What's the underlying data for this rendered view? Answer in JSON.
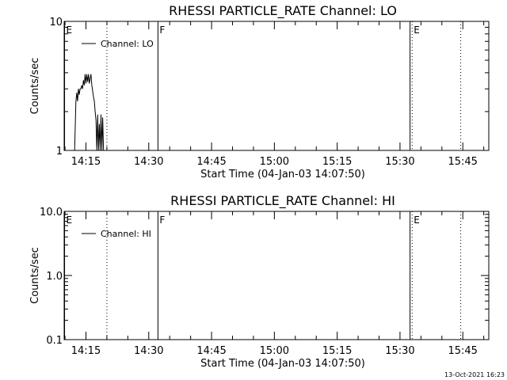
{
  "footer": {
    "timestamp": "13-Oct-2021 16:23"
  },
  "chart_data": [
    {
      "type": "line",
      "title": "RHESSI PARTICLE_RATE Channel: LO",
      "xlabel": "Start Time (04-Jan-03 14:07:50)",
      "ylabel": "Counts/sec",
      "y_scale": "log",
      "ylim": [
        1,
        10
      ],
      "y_ticks": [
        {
          "value": 1,
          "label": "1"
        },
        {
          "value": 10,
          "label": "10"
        }
      ],
      "xlim_minutes": [
        849.8,
        951.2
      ],
      "x_ticks": [
        {
          "value": 855,
          "label": "14:15"
        },
        {
          "value": 870,
          "label": "14:30"
        },
        {
          "value": 885,
          "label": "14:45"
        },
        {
          "value": 900,
          "label": "15:00"
        },
        {
          "value": 915,
          "label": "15:15"
        },
        {
          "value": 930,
          "label": "15:30"
        },
        {
          "value": 945,
          "label": "15:45"
        }
      ],
      "legend": {
        "label": "Channel: LO",
        "position": "top-left"
      },
      "markers": [
        {
          "label": "E",
          "minute": 849.9,
          "style": "solid"
        },
        {
          "label": "",
          "minute": 860.0,
          "style": "dotted"
        },
        {
          "label": "F",
          "minute": 872.2,
          "style": "solid"
        },
        {
          "label": "",
          "minute": 932.4,
          "style": "solid"
        },
        {
          "label": "E",
          "minute": 932.9,
          "style": "dotted"
        },
        {
          "label": "",
          "minute": 944.5,
          "style": "dotted"
        }
      ],
      "series": [
        {
          "x": [
            852.3,
            852.6,
            852.8,
            853.0,
            853.2,
            853.4,
            853.6,
            853.8,
            854.0,
            854.2,
            854.4,
            854.6,
            854.8,
            855.0,
            855.2,
            855.4,
            855.6,
            855.8,
            856.0,
            856.2,
            856.4,
            856.6,
            856.8,
            857.0,
            857.2,
            857.4,
            857.6,
            857.8,
            858.0,
            858.2,
            858.4,
            858.6,
            858.8,
            859.0,
            859.2
          ],
          "y": [
            1.0,
            2.4,
            2.8,
            2.4,
            3.0,
            2.7,
            3.0,
            3.0,
            3.2,
            3.0,
            3.5,
            3.2,
            3.9,
            3.3,
            3.9,
            3.4,
            3.9,
            3.3,
            3.6,
            3.9,
            3.2,
            2.9,
            2.6,
            2.4,
            2.0,
            1.7,
            1.0,
            1.9,
            1.0,
            1.6,
            1.0,
            1.9,
            1.0,
            1.8,
            1.0
          ]
        }
      ]
    },
    {
      "type": "line",
      "title": "RHESSI PARTICLE_RATE Channel: HI",
      "xlabel": "Start Time (04-Jan-03 14:07:50)",
      "ylabel": "Counts/sec",
      "y_scale": "log",
      "ylim": [
        0.1,
        10
      ],
      "y_ticks": [
        {
          "value": 0.1,
          "label": "0.1"
        },
        {
          "value": 1,
          "label": "1.0"
        },
        {
          "value": 10,
          "label": "10.0"
        }
      ],
      "xlim_minutes": [
        849.8,
        951.2
      ],
      "x_ticks": [
        {
          "value": 855,
          "label": "14:15"
        },
        {
          "value": 870,
          "label": "14:30"
        },
        {
          "value": 885,
          "label": "14:45"
        },
        {
          "value": 900,
          "label": "15:00"
        },
        {
          "value": 915,
          "label": "15:15"
        },
        {
          "value": 930,
          "label": "15:30"
        },
        {
          "value": 945,
          "label": "15:45"
        }
      ],
      "legend": {
        "label": "Channel: HI",
        "position": "top-left"
      },
      "markers": [
        {
          "label": "E",
          "minute": 849.9,
          "style": "solid"
        },
        {
          "label": "",
          "minute": 860.0,
          "style": "dotted"
        },
        {
          "label": "F",
          "minute": 872.2,
          "style": "solid"
        },
        {
          "label": "",
          "minute": 932.4,
          "style": "solid"
        },
        {
          "label": "E",
          "minute": 932.9,
          "style": "dotted"
        },
        {
          "label": "",
          "minute": 944.5,
          "style": "dotted"
        }
      ],
      "series": [
        {
          "x": [],
          "y": []
        }
      ]
    }
  ]
}
